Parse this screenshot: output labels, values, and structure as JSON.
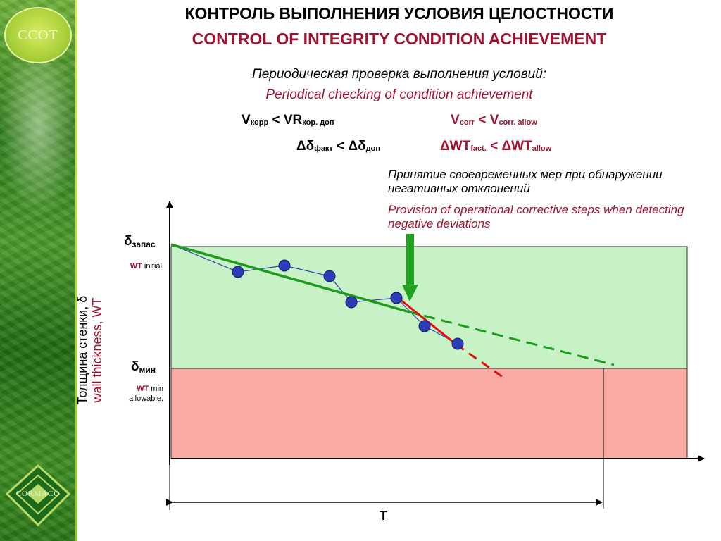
{
  "title": {
    "ru": "КОНТРОЛЬ ВЫПОЛНЕНИЯ УСЛОВИЯ ЦЕЛОСТНОСТИ",
    "en": "CONTROL OF INTEGRITY CONDITION ACHIEVEMENT"
  },
  "subtitle": {
    "ru": "Периодическая проверка выполнения условий:",
    "en": "Periodical checking of condition achievement"
  },
  "formulas": {
    "ru1": {
      "v": "V",
      "v_sub": "корр",
      "op": " < ",
      "vr": "VR",
      "vr_sub": "кор. доп"
    },
    "en1": {
      "v": "V",
      "v_sub": "corr",
      "op": " < ",
      "v2": "V",
      "v2_sub": "corr. allow"
    },
    "ru2": {
      "d1": "Δδ",
      "d1_sub": "факт",
      "op": " < ",
      "d2": "Δδ",
      "d2_sub": "доп"
    },
    "en2": {
      "d1": "ΔWT",
      "d1_sub": "fact.",
      "op": " < ",
      "d2": "ΔWT",
      "d2_sub": "allow"
    }
  },
  "note": {
    "ru": "Принятие своевременных мер при обнаружении негативных отклонений",
    "en": "Provision of operational corrective steps when detecting negative deviations"
  },
  "labels": {
    "zapas_main": "δ",
    "zapas_sub": "запас",
    "wt_initial_bold": "WT",
    "wt_initial_rest": " initial",
    "min_main": "δ",
    "min_sub": "мин",
    "wt_min_bold": "WT",
    "wt_min_rest": " min",
    "wt_min_line2": "allowable.",
    "ylabel_ru": "Толщина стенки, δ",
    "ylabel_en": "wall thickness, WT",
    "t": "T"
  },
  "logos": {
    "top_text": "CCOT",
    "bottom_text": "CORMACO"
  },
  "colors": {
    "title_accent": "#a01230",
    "safe_zone": "#c6f2c6",
    "danger_zone": "#f9aaa2",
    "trend_line": "#1e9a1e",
    "deviation_line": "#e01010",
    "points": "#2a3cb8",
    "arrow": "#22a022"
  }
}
